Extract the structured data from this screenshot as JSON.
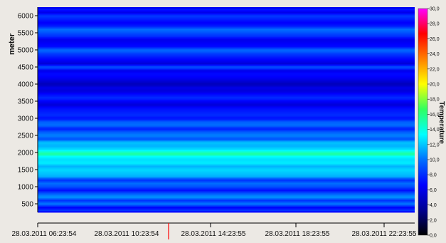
{
  "chart_data": {
    "type": "heatmap",
    "title": "",
    "xlabel": "",
    "ylabel": "meter",
    "colorbar_label": "Temperature",
    "x_ticks": [
      "28.03.2011 06:23:54",
      "28.03.2011 10:23:54",
      "28.03.2011 14:23:55",
      "28.03.2011 18:23:55",
      "28.03.2011 22:23:55"
    ],
    "y_ticks": [
      "500",
      "1000",
      "1500",
      "2000",
      "2500",
      "3000",
      "3500",
      "4000",
      "4500",
      "5000",
      "5500",
      "6000"
    ],
    "ylim": [
      250,
      6250
    ],
    "colorbar_ticks": [
      "0,0",
      "2,0",
      "4,0",
      "6,0",
      "8,0",
      "10,0",
      "12,0",
      "14,0",
      "16,0",
      "18,0",
      "20,0",
      "22,0",
      "24,0",
      "26,0",
      "28,0",
      "30,0"
    ],
    "colorbar_range": [
      0,
      30
    ],
    "colorscale": [
      "#000000",
      "#000090",
      "#0000ff",
      "#0070ff",
      "#00ffff",
      "#30ff60",
      "#ffff00",
      "#ff8000",
      "#ff0000",
      "#ff00ff"
    ],
    "marker_color": "#ff0000",
    "depth_profile": {
      "depth": [
        250,
        300,
        400,
        500,
        600,
        700,
        800,
        900,
        1000,
        1100,
        1200,
        1300,
        1400,
        1500,
        1600,
        1700,
        1800,
        1900,
        1950,
        2000,
        2050,
        2100,
        2200,
        2300,
        2400,
        2500,
        2600,
        2700,
        2800,
        2900,
        3000,
        3100,
        3200,
        3300,
        3400,
        3500,
        3600,
        3700,
        3800,
        3900,
        4000,
        4100,
        4200,
        4300,
        4400,
        4500,
        4600,
        4700,
        4800,
        4900,
        5000,
        5100,
        5200,
        5300,
        5400,
        5500,
        5600,
        5700,
        5800,
        5900,
        6000,
        6100,
        6200,
        6250
      ],
      "temperature": [
        5.5,
        8.5,
        6.5,
        10.5,
        8.0,
        11.0,
        9.5,
        7.0,
        9.0,
        10.0,
        8.0,
        11.5,
        12.0,
        12.5,
        11.5,
        13.0,
        12.5,
        13.5,
        15.5,
        15.0,
        13.5,
        12.5,
        11.5,
        12.0,
        9.0,
        10.5,
        9.5,
        7.5,
        10.0,
        9.5,
        7.0,
        8.0,
        7.5,
        7.0,
        5.5,
        6.5,
        8.0,
        7.0,
        5.5,
        6.0,
        4.5,
        5.5,
        6.5,
        7.0,
        6.0,
        9.5,
        5.5,
        6.5,
        7.5,
        8.5,
        10.0,
        7.0,
        6.5,
        6.0,
        8.0,
        9.0,
        10.0,
        7.5,
        6.5,
        7.5,
        8.5,
        6.0,
        7.5,
        5.5
      ]
    }
  }
}
